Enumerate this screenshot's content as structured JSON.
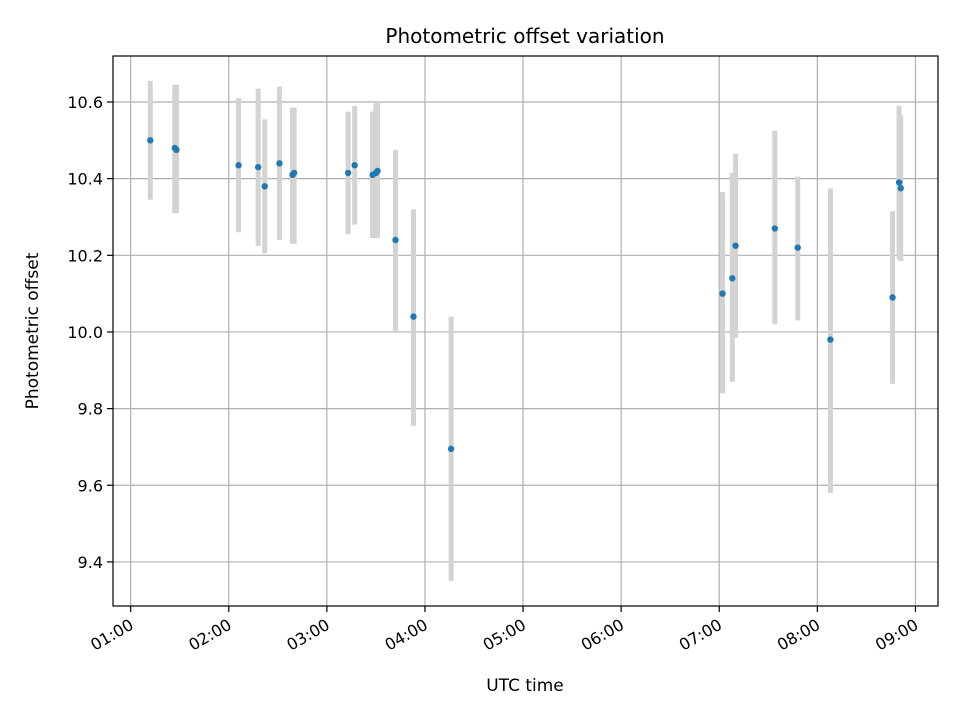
{
  "chart_data": {
    "type": "scatter",
    "title": "Photometric offset variation",
    "xlabel": "UTC time",
    "ylabel": "Photometric offset",
    "x_ticks": [
      "01:00",
      "02:00",
      "03:00",
      "04:00",
      "05:00",
      "06:00",
      "07:00",
      "08:00",
      "09:00"
    ],
    "x_tick_values_hours": [
      1,
      2,
      3,
      4,
      5,
      6,
      7,
      8,
      9
    ],
    "y_ticks": [
      "9.4",
      "9.6",
      "9.8",
      "10.0",
      "10.2",
      "10.4",
      "10.6"
    ],
    "y_tick_values": [
      9.4,
      9.6,
      9.8,
      10.0,
      10.2,
      10.4,
      10.6
    ],
    "xlim_hours": [
      0.82,
      9.23
    ],
    "ylim": [
      9.285,
      10.72
    ],
    "grid": true,
    "colors": {
      "point": "#1f77b4",
      "errorbar": "#d3d3d3",
      "grid": "#b0b0b0"
    },
    "points": [
      {
        "time": "01:12",
        "y": 10.5,
        "yerr_low": 10.345,
        "yerr_high": 10.655
      },
      {
        "time": "01:27",
        "y": 10.48,
        "yerr_low": 10.31,
        "yerr_high": 10.645
      },
      {
        "time": "01:28",
        "y": 10.475,
        "yerr_low": 10.31,
        "yerr_high": 10.645
      },
      {
        "time": "02:06",
        "y": 10.435,
        "yerr_low": 10.26,
        "yerr_high": 10.61
      },
      {
        "time": "02:18",
        "y": 10.43,
        "yerr_low": 10.225,
        "yerr_high": 10.635
      },
      {
        "time": "02:22",
        "y": 10.38,
        "yerr_low": 10.205,
        "yerr_high": 10.555
      },
      {
        "time": "02:31",
        "y": 10.44,
        "yerr_low": 10.24,
        "yerr_high": 10.64
      },
      {
        "time": "02:39",
        "y": 10.41,
        "yerr_low": 10.23,
        "yerr_high": 10.585
      },
      {
        "time": "02:40",
        "y": 10.415,
        "yerr_low": 10.23,
        "yerr_high": 10.585
      },
      {
        "time": "03:13",
        "y": 10.415,
        "yerr_low": 10.255,
        "yerr_high": 10.575
      },
      {
        "time": "03:17",
        "y": 10.435,
        "yerr_low": 10.28,
        "yerr_high": 10.59
      },
      {
        "time": "03:28",
        "y": 10.41,
        "yerr_low": 10.245,
        "yerr_high": 10.575
      },
      {
        "time": "03:30",
        "y": 10.415,
        "yerr_low": 10.245,
        "yerr_high": 10.595
      },
      {
        "time": "03:31",
        "y": 10.42,
        "yerr_low": 10.245,
        "yerr_high": 10.6
      },
      {
        "time": "03:42",
        "y": 10.24,
        "yerr_low": 10.0,
        "yerr_high": 10.475
      },
      {
        "time": "03:53",
        "y": 10.04,
        "yerr_low": 9.755,
        "yerr_high": 10.32
      },
      {
        "time": "04:16",
        "y": 9.695,
        "yerr_low": 9.35,
        "yerr_high": 10.04
      },
      {
        "time": "07:02",
        "y": 10.1,
        "yerr_low": 9.84,
        "yerr_high": 10.365
      },
      {
        "time": "07:08",
        "y": 10.14,
        "yerr_low": 9.87,
        "yerr_high": 10.415
      },
      {
        "time": "07:10",
        "y": 10.225,
        "yerr_low": 9.985,
        "yerr_high": 10.465
      },
      {
        "time": "07:34",
        "y": 10.27,
        "yerr_low": 10.02,
        "yerr_high": 10.525
      },
      {
        "time": "07:48",
        "y": 10.22,
        "yerr_low": 10.03,
        "yerr_high": 10.405
      },
      {
        "time": "08:08",
        "y": 9.98,
        "yerr_low": 9.58,
        "yerr_high": 10.375
      },
      {
        "time": "08:46",
        "y": 10.09,
        "yerr_low": 9.865,
        "yerr_high": 10.315
      },
      {
        "time": "08:50",
        "y": 10.39,
        "yerr_low": 10.19,
        "yerr_high": 10.59
      },
      {
        "time": "08:51",
        "y": 10.375,
        "yerr_low": 10.185,
        "yerr_high": 10.565
      }
    ]
  }
}
